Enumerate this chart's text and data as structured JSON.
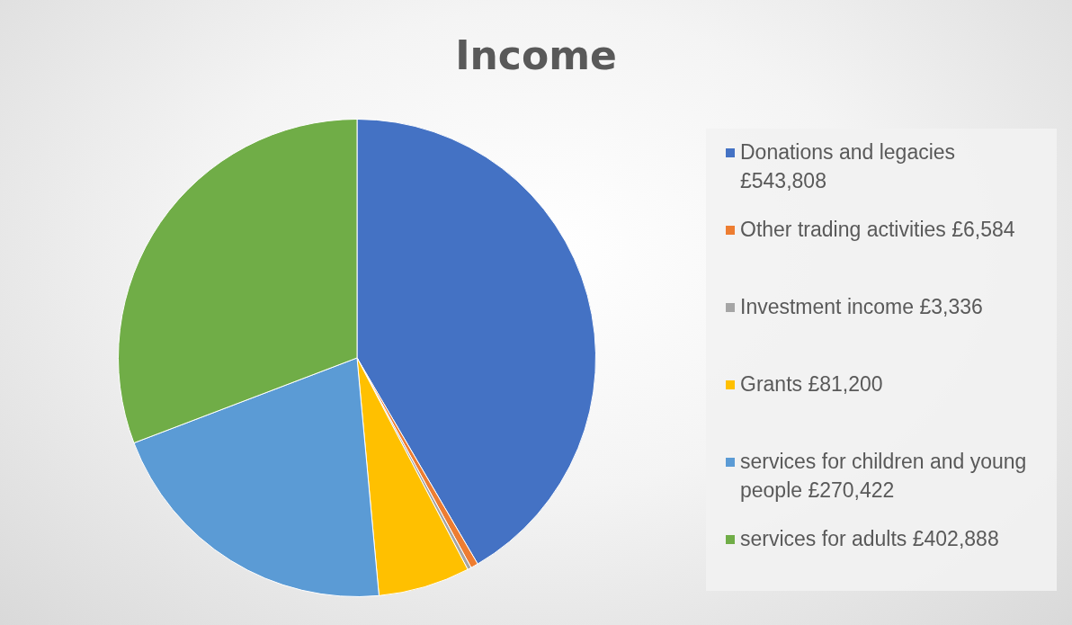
{
  "chart_data": {
    "type": "pie",
    "title": "Income",
    "categories": [
      "Donations and legacies £543,808",
      "Other trading activities £6,584",
      "Investment income £3,336",
      "Grants £81,200",
      "services for children and young people £270,422",
      "services for adults £402,888"
    ],
    "values": [
      543808,
      6584,
      3336,
      81200,
      270422,
      402888
    ],
    "colors": [
      "#4472c4",
      "#ed7d31",
      "#a5a5a5",
      "#ffc000",
      "#5b9bd5",
      "#70ad47"
    ],
    "legend": "right"
  }
}
